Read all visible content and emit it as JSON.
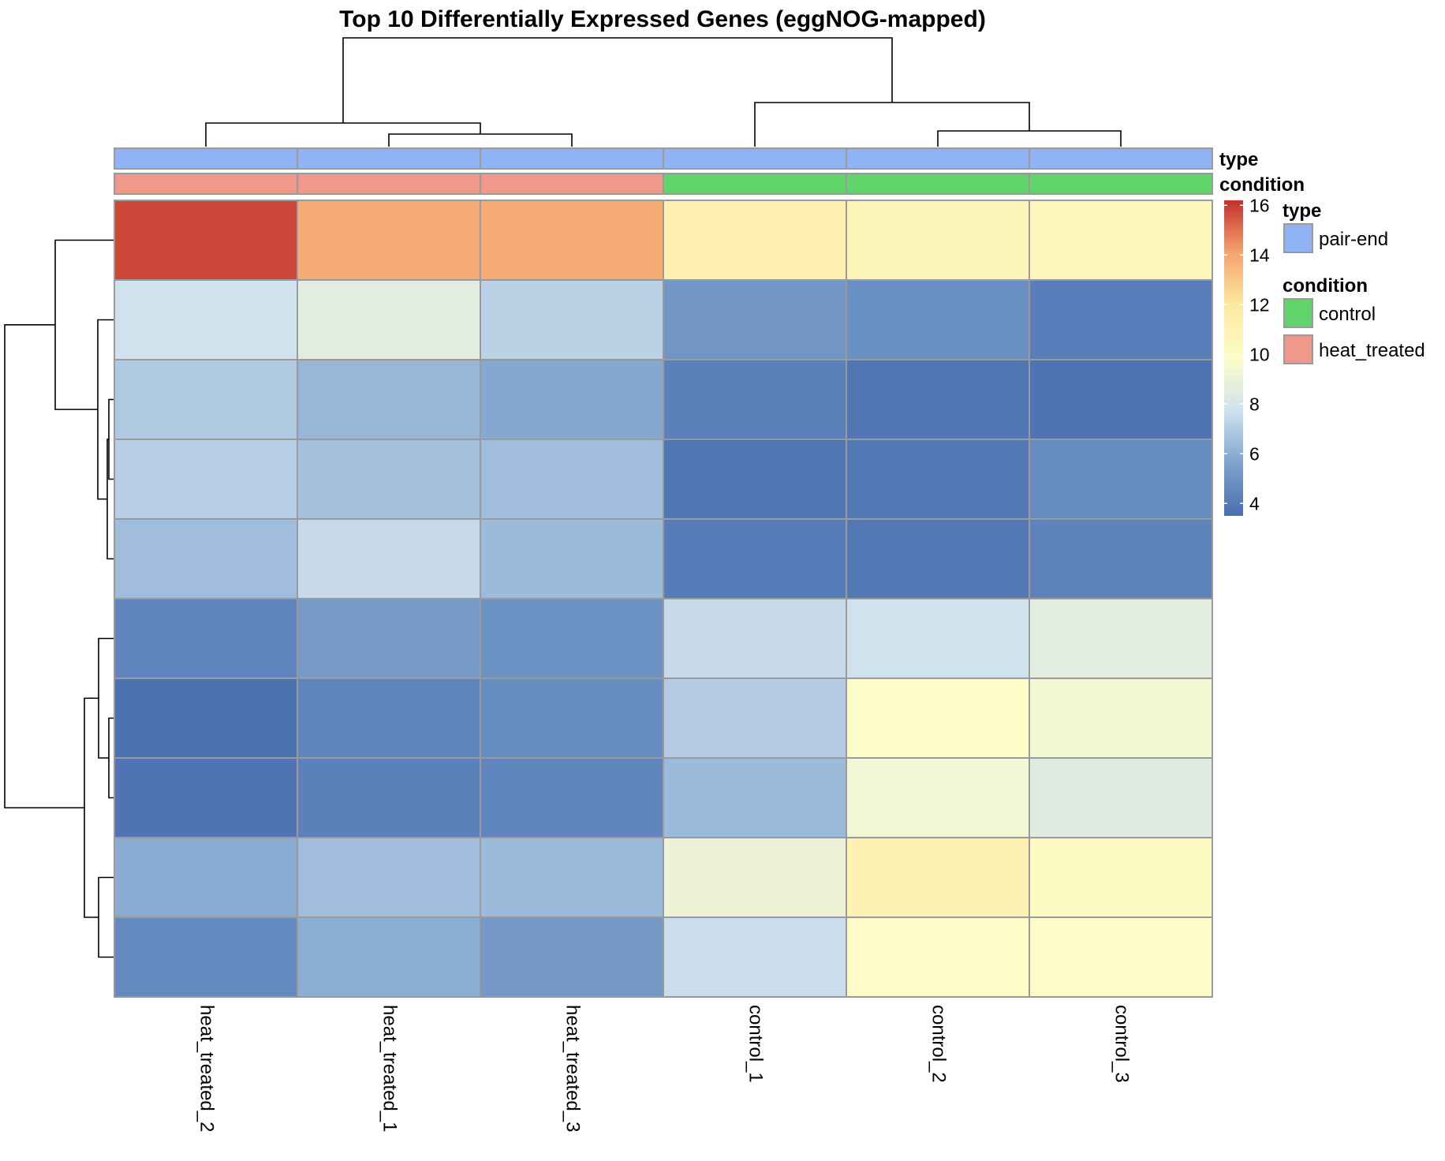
{
  "chart_data": {
    "type": "heatmap",
    "title": "Top 10 Differentially Expressed Genes (eggNOG-mapped)",
    "columns": [
      "heat_treated_2",
      "heat_treated_1",
      "heat_treated_3",
      "control_1",
      "control_2",
      "control_3"
    ],
    "rows": 10,
    "values": [
      [
        15.8,
        13.9,
        13.9,
        11.2,
        10.8,
        10.6
      ],
      [
        7.8,
        8.6,
        7.2,
        5.1,
        4.8,
        4.1
      ],
      [
        6.9,
        6.3,
        5.8,
        4.2,
        3.8,
        3.7
      ],
      [
        7.1,
        6.6,
        6.5,
        3.8,
        3.9,
        4.7
      ],
      [
        6.5,
        7.5,
        6.4,
        4.0,
        3.9,
        4.3
      ],
      [
        4.4,
        5.3,
        4.9,
        7.5,
        7.8,
        8.6
      ],
      [
        3.6,
        4.4,
        4.7,
        7.0,
        9.9,
        9.4
      ],
      [
        3.7,
        4.2,
        4.4,
        6.4,
        9.3,
        8.5
      ],
      [
        5.9,
        6.5,
        6.4,
        9.1,
        11.0,
        10.2
      ],
      [
        4.6,
        6.0,
        5.2,
        7.6,
        10.0,
        10.0
      ]
    ],
    "color_scale": {
      "min": 3.5,
      "max": 16.2,
      "ticks": [
        4,
        6,
        8,
        10,
        12,
        14,
        16
      ],
      "stops": [
        "#4a6eb0",
        "#7ea3cd",
        "#cfe1ee",
        "#fdfdc9",
        "#fde9a0",
        "#f5a470",
        "#c4312c"
      ]
    },
    "annotations": {
      "type": {
        "label": "type",
        "values": [
          "pair-end",
          "pair-end",
          "pair-end",
          "pair-end",
          "pair-end",
          "pair-end"
        ]
      },
      "condition": {
        "label": "condition",
        "values": [
          "heat_treated",
          "heat_treated",
          "heat_treated",
          "control",
          "control",
          "control"
        ]
      }
    },
    "legend": {
      "type": {
        "title": "type",
        "items": [
          {
            "label": "pair-end",
            "color": "#8fb3f5"
          }
        ]
      },
      "condition": {
        "title": "condition",
        "items": [
          {
            "label": "control",
            "color": "#60d36a"
          },
          {
            "label": "heat_treated",
            "color": "#ef998b"
          }
        ]
      }
    },
    "column_dendrogram": [
      [
        1,
        2
      ],
      [
        4,
        5
      ],
      [
        0,
        6
      ],
      [
        3,
        7
      ],
      [
        8,
        9
      ]
    ],
    "row_dendrogram": [
      [
        2,
        3
      ],
      [
        10,
        4
      ],
      [
        1,
        11
      ],
      [
        6,
        7
      ],
      [
        5,
        13
      ],
      [
        8,
        9
      ],
      [
        14,
        15
      ],
      [
        0,
        12
      ],
      [
        16,
        17
      ]
    ],
    "legend_position": "right",
    "grid": true
  }
}
